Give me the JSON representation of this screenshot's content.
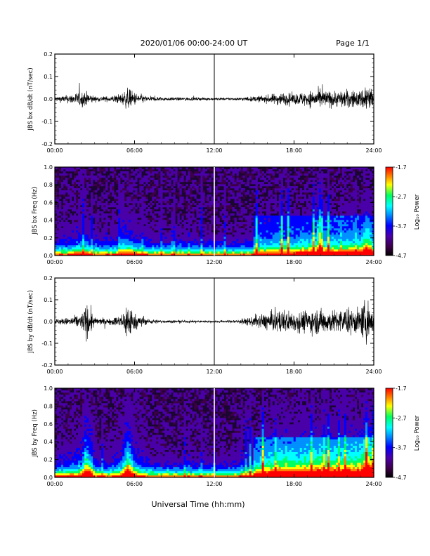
{
  "header": {
    "date_range": "2020/01/06  00:00-24:00 UT",
    "page": "Page 1/1"
  },
  "colors": {
    "trace": "#000000",
    "colormap": [
      "#000000",
      "#3c0048",
      "#4a00a8",
      "#0000ff",
      "#0090ff",
      "#00ffff",
      "#00ff60",
      "#ffff00",
      "#ff8000",
      "#ff0000"
    ]
  },
  "chart_data": [
    {
      "type": "line",
      "ylabel": "JBS bx dB/dt (nT/sec)",
      "xlim": [
        "00:00",
        "24:00"
      ],
      "ylim": [
        -0.2,
        0.2
      ],
      "x_ticks": [
        "00:00",
        "06:00",
        "12:00",
        "18:00",
        "24:00"
      ],
      "y_ticks": [
        "-0.2",
        "-0.1",
        "0.0",
        "0.1",
        "0.2"
      ],
      "marker_time": "12:00",
      "envelope": {
        "hours": [
          0,
          1,
          2,
          2.5,
          3,
          4,
          5,
          5.5,
          6,
          7,
          8,
          9,
          10,
          11,
          12,
          13,
          14,
          15,
          16,
          17,
          18,
          19,
          20,
          21,
          22,
          23,
          23.5,
          24
        ],
        "amplitude": [
          0.02,
          0.03,
          0.06,
          0.05,
          0.02,
          0.02,
          0.04,
          0.08,
          0.05,
          0.02,
          0.015,
          0.012,
          0.012,
          0.01,
          0.01,
          0.01,
          0.012,
          0.02,
          0.03,
          0.05,
          0.04,
          0.06,
          0.07,
          0.06,
          0.07,
          0.06,
          0.15,
          0.05
        ]
      }
    },
    {
      "type": "heatmap",
      "ylabel": "JBS bx Freq (Hz)",
      "xlim": [
        "00:00",
        "24:00"
      ],
      "ylim": [
        0.0,
        1.0
      ],
      "x_ticks": [
        "00:00",
        "06:00",
        "12:00",
        "18:00",
        "24:00"
      ],
      "y_ticks": [
        "0.0",
        "0.2",
        "0.4",
        "0.6",
        "0.8",
        "1.0"
      ],
      "marker_time": "12:00",
      "colorbar": {
        "label": "Log₁₀ Power",
        "ticks": [
          "-1.7",
          "-2.7",
          "-3.7",
          "-4.7"
        ],
        "range": [
          -4.7,
          -1.7
        ]
      }
    },
    {
      "type": "line",
      "ylabel": "JBS by dB/dt (nT/sec)",
      "xlim": [
        "00:00",
        "24:00"
      ],
      "ylim": [
        -0.2,
        0.2
      ],
      "x_ticks": [
        "00:00",
        "06:00",
        "12:00",
        "18:00",
        "24:00"
      ],
      "y_ticks": [
        "-0.2",
        "-0.1",
        "0.0",
        "0.1",
        "0.2"
      ],
      "marker_time": "12:00",
      "envelope": {
        "hours": [
          0,
          1,
          2,
          2.5,
          3,
          4,
          5,
          5.5,
          6,
          7,
          8,
          9,
          10,
          11,
          12,
          13,
          14,
          15,
          16,
          17,
          18,
          19,
          20,
          21,
          22,
          23,
          23.5,
          24
        ],
        "amplitude": [
          0.02,
          0.03,
          0.06,
          0.15,
          0.03,
          0.02,
          0.05,
          0.17,
          0.06,
          0.02,
          0.012,
          0.01,
          0.01,
          0.008,
          0.008,
          0.01,
          0.02,
          0.04,
          0.07,
          0.09,
          0.08,
          0.09,
          0.1,
          0.09,
          0.1,
          0.1,
          0.19,
          0.08
        ]
      }
    },
    {
      "type": "heatmap",
      "ylabel": "JBS by Freq (Hz)",
      "xlim": [
        "00:00",
        "24:00"
      ],
      "ylim": [
        0.0,
        1.0
      ],
      "x_ticks": [
        "00:00",
        "06:00",
        "12:00",
        "18:00",
        "24:00"
      ],
      "y_ticks": [
        "0.0",
        "0.2",
        "0.4",
        "0.6",
        "0.8",
        "1.0"
      ],
      "marker_time": "12:00",
      "colorbar": {
        "label": "Log₁₀ Power",
        "ticks": [
          "-1.7",
          "-2.7",
          "-3.7",
          "-4.7"
        ],
        "range": [
          -4.7,
          -1.7
        ]
      }
    }
  ],
  "xlabel": "Universal Time (hh:mm)"
}
